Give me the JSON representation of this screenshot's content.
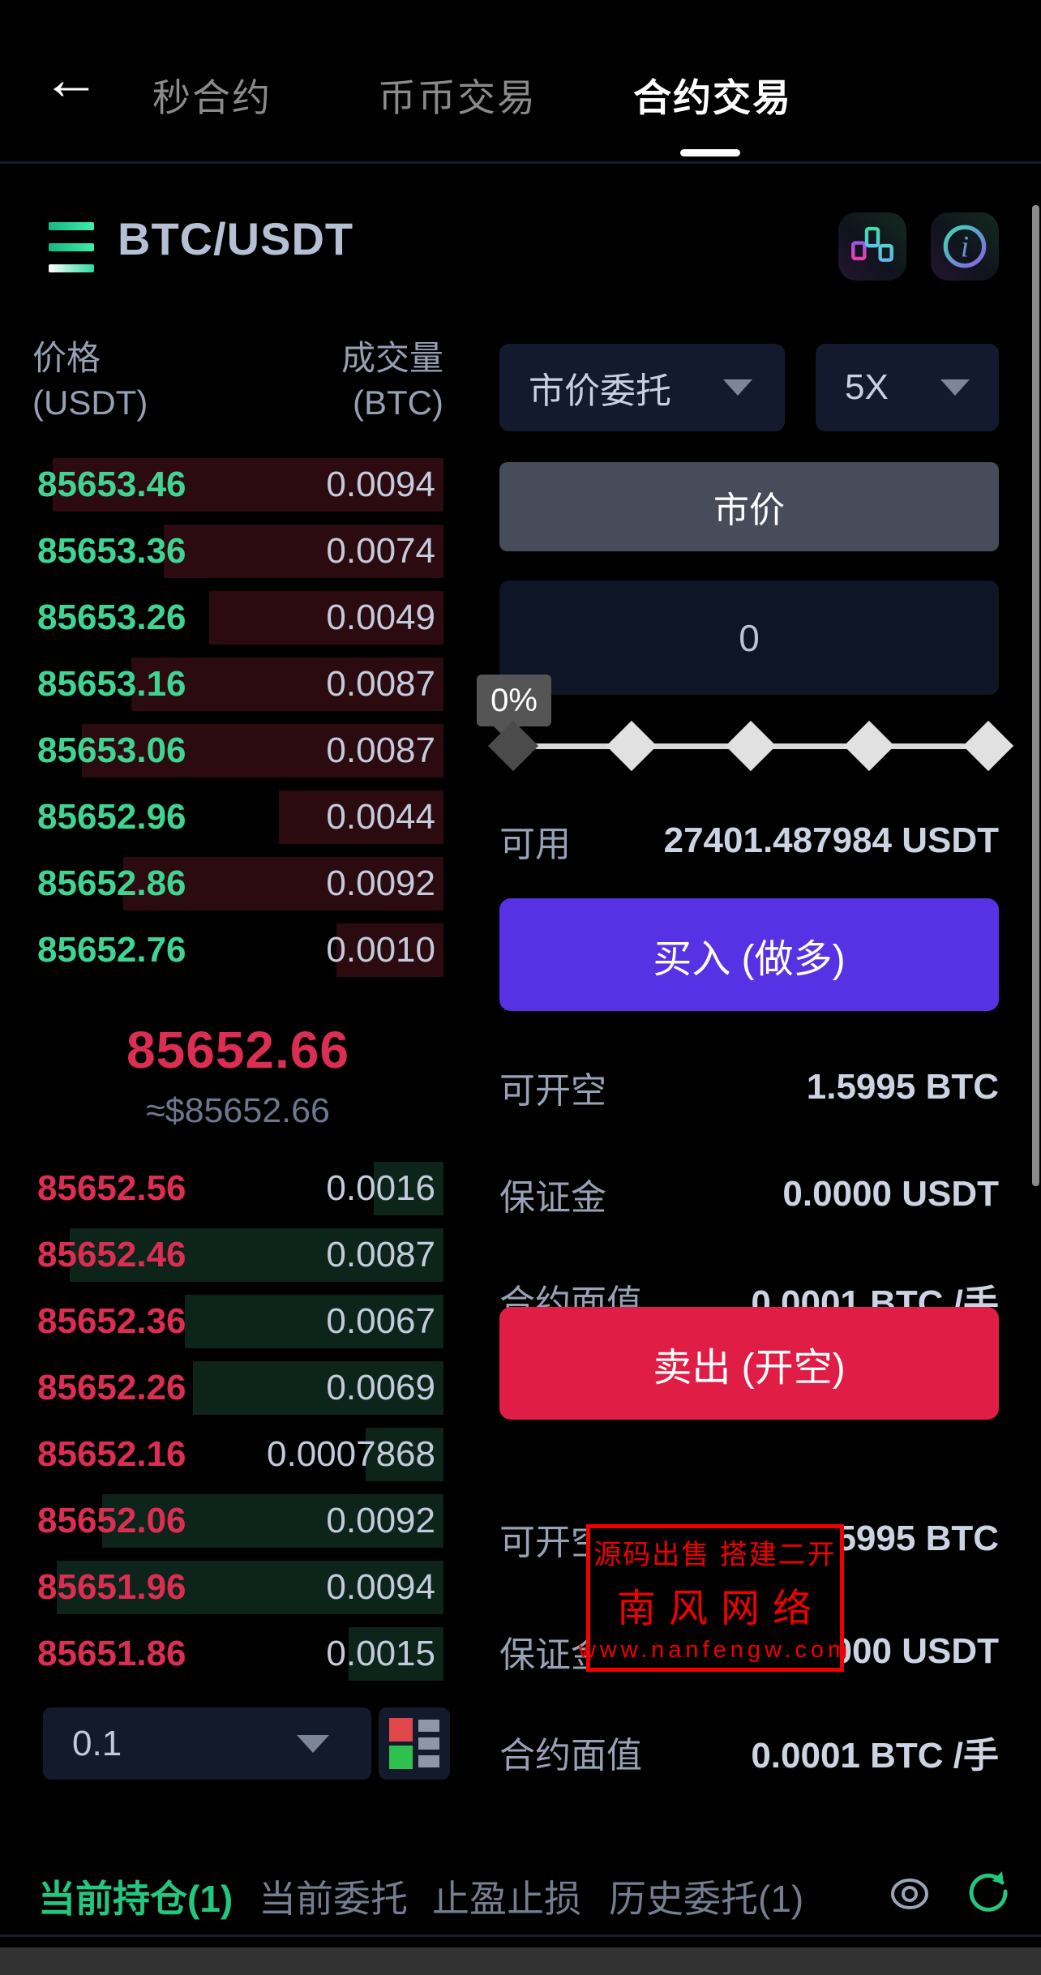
{
  "header": {
    "back": "←",
    "tabs": [
      {
        "label": "秒合约",
        "active": false
      },
      {
        "label": "币币交易",
        "active": false
      },
      {
        "label": "合约交易",
        "active": true
      }
    ]
  },
  "symbol": {
    "pair": "BTC/USDT",
    "icons": [
      "menu-icon",
      "candlestick-chart-icon",
      "info-icon"
    ]
  },
  "orderbook": {
    "col_headers": {
      "price_line1": "价格",
      "price_line2": "(USDT)",
      "vol_line1": "成交量",
      "vol_line2": "(BTC)"
    },
    "asks": [
      {
        "price": "85653.46",
        "vol": "0.0094",
        "bar_pct": 95
      },
      {
        "price": "85653.36",
        "vol": "0.0074",
        "bar_pct": 68
      },
      {
        "price": "85653.26",
        "vol": "0.0049",
        "bar_pct": 57
      },
      {
        "price": "85653.16",
        "vol": "0.0087",
        "bar_pct": 76
      },
      {
        "price": "85653.06",
        "vol": "0.0087",
        "bar_pct": 88
      },
      {
        "price": "85652.96",
        "vol": "0.0044",
        "bar_pct": 40
      },
      {
        "price": "85652.86",
        "vol": "0.0092",
        "bar_pct": 78
      },
      {
        "price": "85652.76",
        "vol": "0.0010",
        "bar_pct": 26
      }
    ],
    "last_price": "85652.66",
    "approx_price": "≈$85652.66",
    "bids": [
      {
        "price": "85652.56",
        "vol": "0.0016",
        "bar_pct": 17
      },
      {
        "price": "85652.46",
        "vol": "0.0087",
        "bar_pct": 91
      },
      {
        "price": "85652.36",
        "vol": "0.0067",
        "bar_pct": 63
      },
      {
        "price": "85652.26",
        "vol": "0.0069",
        "bar_pct": 61
      },
      {
        "price": "85652.16",
        "vol": "0.0007868",
        "bar_pct": 19
      },
      {
        "price": "85652.06",
        "vol": "0.0092",
        "bar_pct": 83
      },
      {
        "price": "85651.96",
        "vol": "0.0094",
        "bar_pct": 94
      },
      {
        "price": "85651.86",
        "vol": "0.0015",
        "bar_pct": 23
      }
    ],
    "tick_size": "0.1"
  },
  "trade_panel": {
    "order_type": "市价委托",
    "leverage": "5X",
    "price_mode_button": "市价",
    "amount_value": "0",
    "slider": {
      "tooltip": "0%",
      "marker_count": 5,
      "selected_index": 0
    },
    "available": {
      "label": "可用",
      "value": "27401.487984 USDT"
    },
    "buy_button": "买入 (做多)",
    "long_info": [
      {
        "label": "可开空",
        "value": "1.5995 BTC"
      },
      {
        "label": "保证金",
        "value": "0.0000 USDT"
      },
      {
        "label": "合约面值",
        "value": "0.0001 BTC /手"
      }
    ],
    "sell_button": "卖出 (开空)",
    "short_info": [
      {
        "label": "可开空",
        "value": "1.5995 BTC"
      },
      {
        "label": "保证金",
        "value": "0.0000 USDT"
      },
      {
        "label": "合约面值",
        "value": "0.0001 BTC /手"
      }
    ]
  },
  "watermark": {
    "line1": "源码出售 搭建二开",
    "line2": "南风网络",
    "line3": "www.nanfengw.com",
    "color": "#f00000"
  },
  "bottom_tabs": [
    {
      "label": "当前持仓(1)",
      "active": true
    },
    {
      "label": "当前委托",
      "active": false
    },
    {
      "label": "止盈止损",
      "active": false
    },
    {
      "label": "历史委托(1)",
      "active": false
    }
  ],
  "colors": {
    "ask_price": "#3fd492",
    "bid_price": "#dc2e52",
    "ask_bar": "#2b0a10",
    "bid_bar": "#0c2419",
    "buy_button": "#5732e4",
    "sell_button": "#e01d45",
    "accent_green": "#23c77d",
    "last_price": "#dc2e52"
  }
}
